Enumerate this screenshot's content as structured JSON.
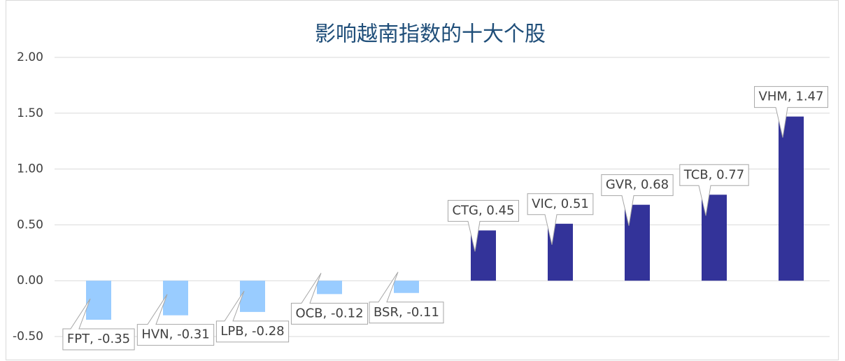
{
  "chart_data": {
    "type": "bar",
    "title": "影响越南指数的十大个股",
    "categories": [
      "FPT",
      "HVN",
      "LPB",
      "OCB",
      "BSR",
      "CTG",
      "VIC",
      "GVR",
      "TCB",
      "VHM"
    ],
    "values": [
      -0.35,
      -0.31,
      -0.28,
      -0.12,
      -0.11,
      0.45,
      0.51,
      0.68,
      0.77,
      1.47
    ],
    "value_labels": [
      "FPT, -0.35",
      "HVN, -0.31",
      "LPB, -0.28",
      "OCB, -0.12",
      "BSR, -0.11",
      "CTG, 0.45",
      "VIC, 0.51",
      "GVR, 0.68",
      "TCB, 0.77",
      "VHM, 1.47"
    ],
    "colors": [
      "#99ccff",
      "#99ccff",
      "#99ccff",
      "#99ccff",
      "#99ccff",
      "#333399",
      "#333399",
      "#333399",
      "#333399",
      "#333399"
    ],
    "ylim": [
      -0.5,
      2
    ],
    "yticks": [
      {
        "value": -0.5,
        "label": "-0.50"
      },
      {
        "value": 0,
        "label": "0.00"
      },
      {
        "value": 0.5,
        "label": "0.50"
      },
      {
        "value": 1,
        "label": "1.00"
      },
      {
        "value": 1.5,
        "label": "1.50"
      },
      {
        "value": 2,
        "label": "2.00"
      }
    ],
    "grid": true
  }
}
